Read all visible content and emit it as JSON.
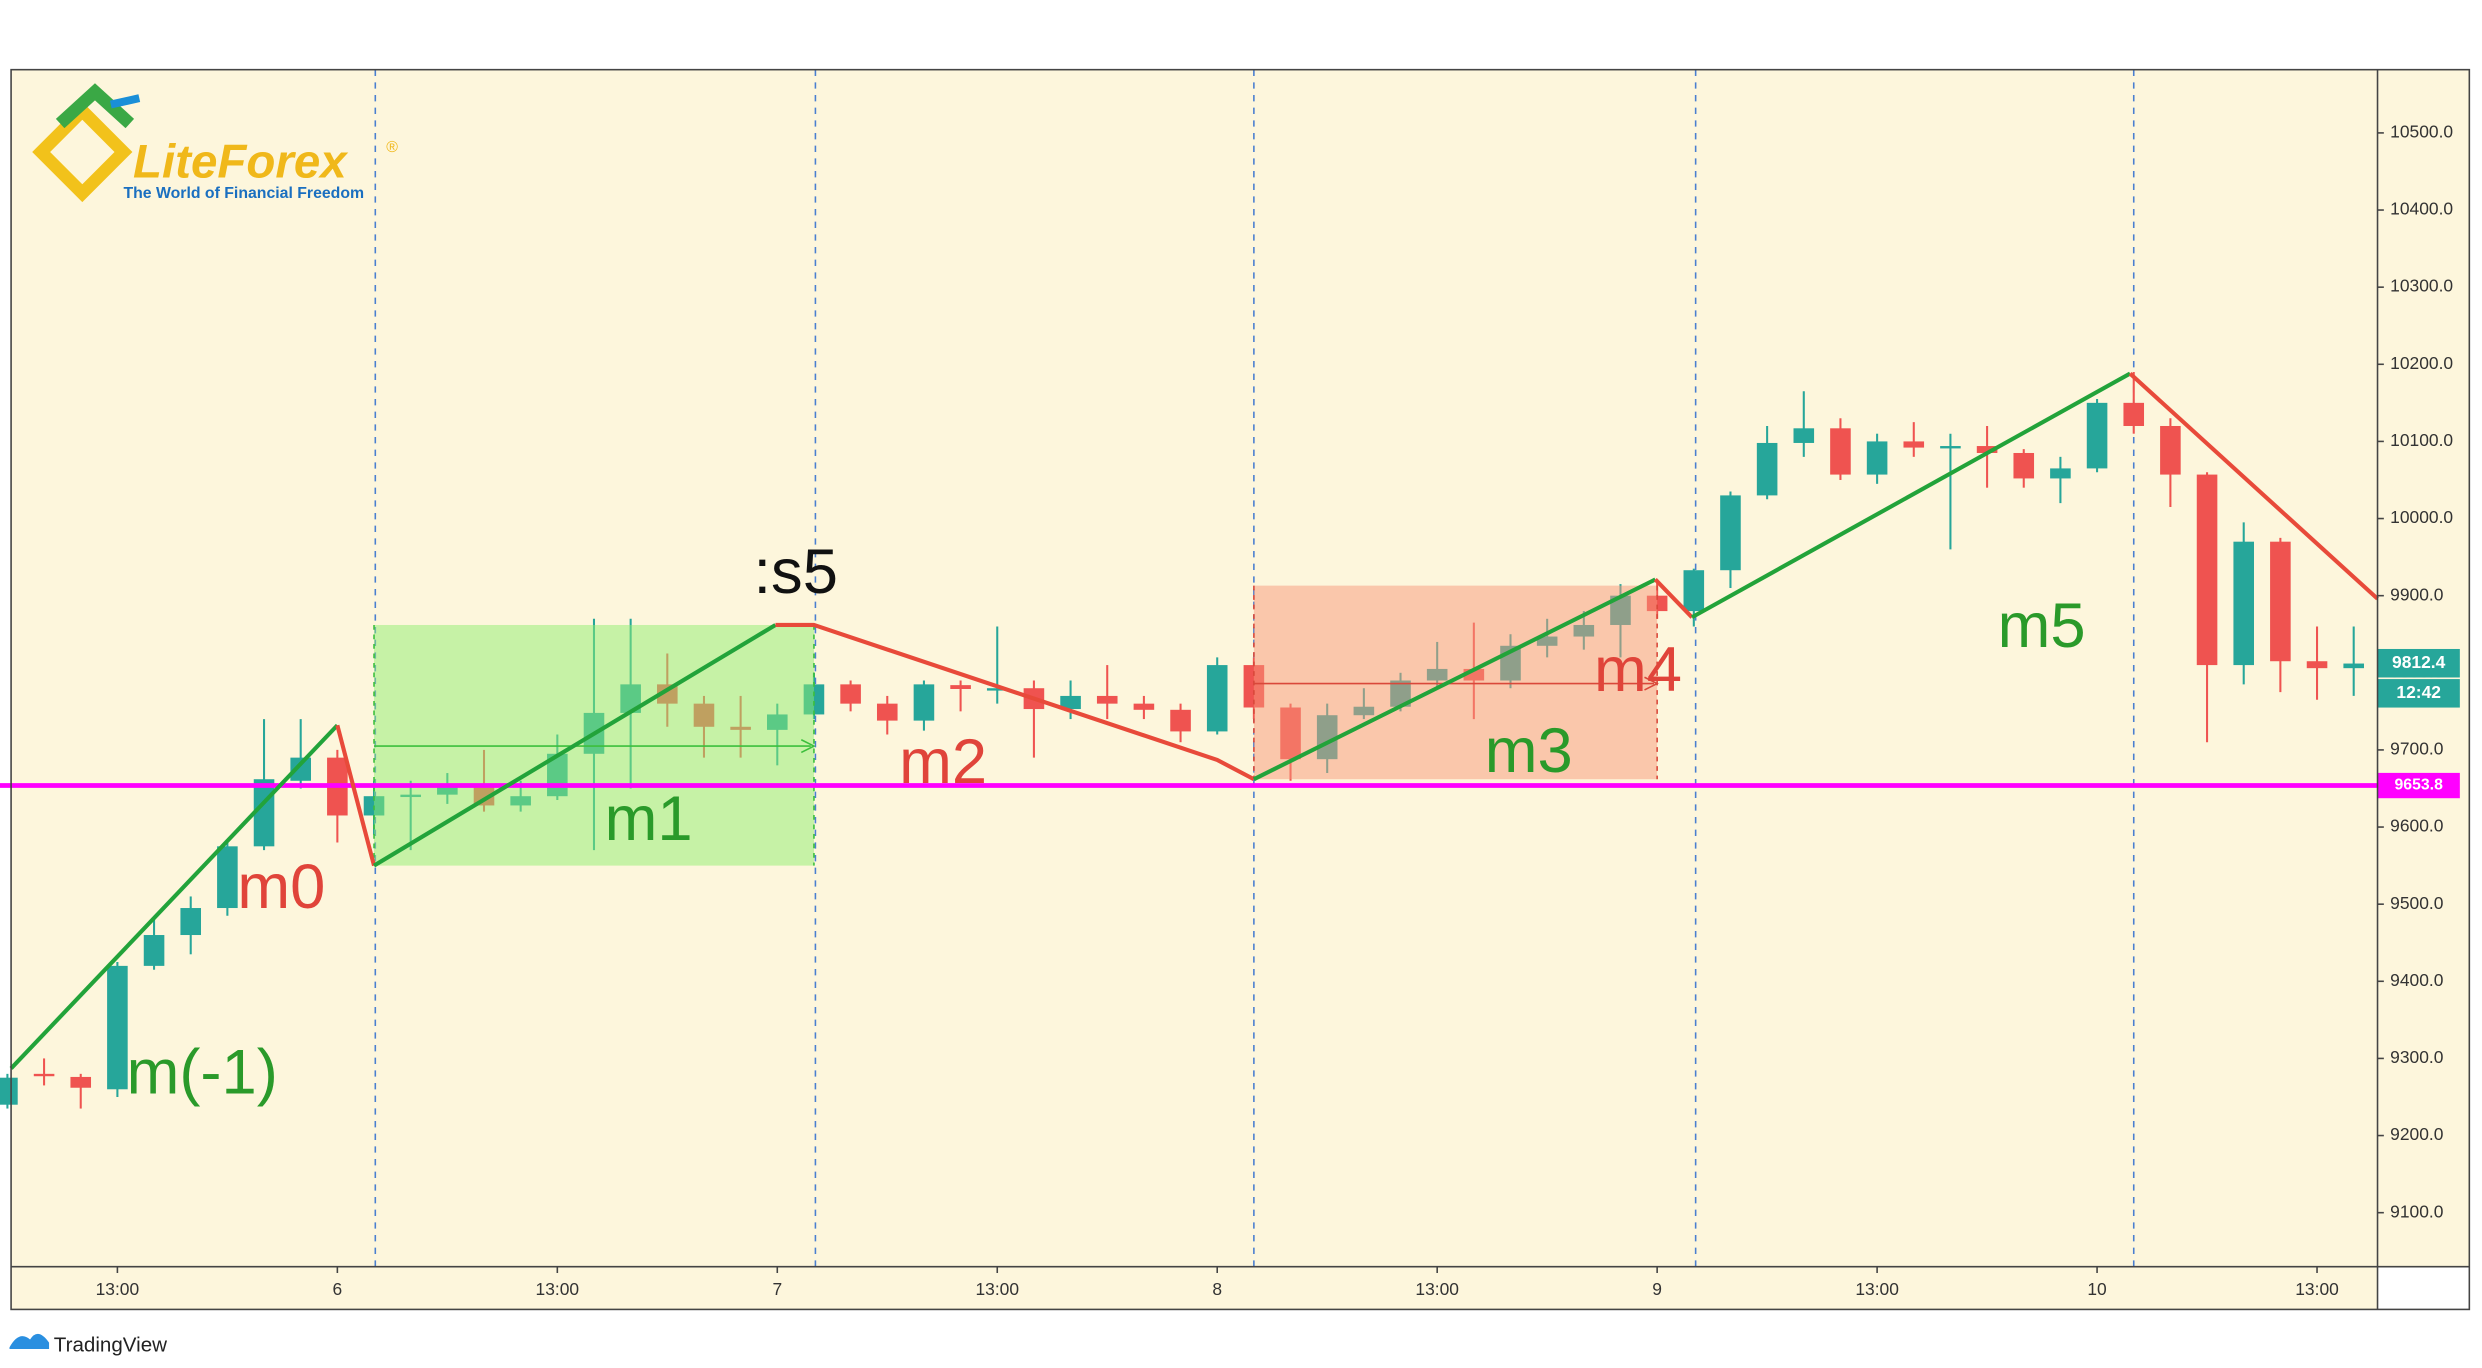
{
  "chart_data": {
    "type": "candlestick",
    "x": [
      -18,
      -16,
      -14,
      -12,
      -10,
      -8,
      -6,
      -4,
      -2,
      0,
      2,
      4,
      6,
      8,
      10,
      12,
      14,
      16,
      18,
      20,
      22,
      24,
      26,
      28,
      30,
      32,
      34,
      36,
      38,
      40,
      42,
      44,
      46,
      48,
      50,
      52,
      54,
      56,
      58,
      60,
      62,
      64,
      66,
      68,
      70,
      72,
      74,
      76,
      78,
      80,
      82,
      84,
      86,
      88,
      90,
      92,
      94,
      96,
      98,
      100,
      102,
      104,
      106,
      108,
      110
    ],
    "open": [
      9240,
      9280,
      9276,
      9260,
      9420,
      9460,
      9495,
      9575,
      9660,
      9690,
      9615,
      9640,
      9642,
      9652,
      9628,
      9640,
      9695,
      9748,
      9785,
      9760,
      9730,
      9726,
      9746,
      9785,
      9760,
      9738,
      9784,
      9779,
      9780,
      9753,
      9770,
      9760,
      9752,
      9724,
      9810,
      9755,
      9688,
      9745,
      9756,
      9790,
      9805,
      9790,
      9835,
      9847,
      9862,
      9900,
      9880,
      9933,
      10030,
      10098,
      10117,
      10057,
      10100,
      10092,
      10094,
      10085,
      10052,
      10065,
      10150,
      10120,
      10057,
      9810,
      9970,
      9815,
      9806
    ],
    "high": [
      9280,
      9300,
      9280,
      9425,
      9480,
      9510,
      9580,
      9740,
      9740,
      9700,
      9660,
      9660,
      9670,
      9700,
      9660,
      9720,
      9870,
      9870,
      9825,
      9770,
      9770,
      9760,
      9800,
      9790,
      9770,
      9790,
      9790,
      9860,
      9790,
      9790,
      9810,
      9770,
      9760,
      9820,
      9820,
      9760,
      9760,
      9780,
      9800,
      9840,
      9865,
      9850,
      9870,
      9880,
      9915,
      9920,
      9935,
      10035,
      10120,
      10165,
      10130,
      10110,
      10125,
      10110,
      10120,
      10090,
      10080,
      10155,
      10190,
      10130,
      10060,
      9995,
      9975,
      9860,
      9860
    ],
    "low": [
      9235,
      9265,
      9235,
      9250,
      9415,
      9435,
      9485,
      9570,
      9650,
      9580,
      9590,
      9570,
      9630,
      9620,
      9620,
      9635,
      9570,
      9650,
      9730,
      9690,
      9690,
      9680,
      9740,
      9750,
      9720,
      9725,
      9750,
      9760,
      9690,
      9740,
      9740,
      9740,
      9710,
      9720,
      9740,
      9660,
      9670,
      9740,
      9750,
      9780,
      9740,
      9780,
      9820,
      9830,
      9820,
      9870,
      9860,
      9910,
      10025,
      10080,
      10050,
      10045,
      10080,
      9960,
      10040,
      10040,
      10020,
      10060,
      10110,
      10015,
      9710,
      9785,
      9775,
      9765,
      9770
    ],
    "close": [
      9275,
      9278,
      9262,
      9420,
      9460,
      9495,
      9575,
      9662,
      9690,
      9615,
      9640,
      9642,
      9652,
      9628,
      9640,
      9695,
      9748,
      9785,
      9760,
      9730,
      9726,
      9746,
      9785,
      9760,
      9738,
      9785,
      9779,
      9780,
      9753,
      9770,
      9760,
      9752,
      9724,
      9810,
      9755,
      9688,
      9745,
      9756,
      9790,
      9805,
      9790,
      9835,
      9847,
      9862,
      9900,
      9880,
      9933,
      10030,
      10098,
      10117,
      10057,
      10100,
      10092,
      10094,
      10085,
      10052,
      10065,
      10150,
      10120,
      10057,
      9810,
      9970,
      9815,
      9806,
      9812
    ],
    "up_color": "#26a69a",
    "down_color": "#ef5350",
    "xlim": [
      -17.8,
      111.3
    ],
    "xticks": [
      {
        "value": -12,
        "label": "13:00"
      },
      {
        "value": 0,
        "label": "6"
      },
      {
        "value": 12,
        "label": "13:00"
      },
      {
        "value": 24,
        "label": "7"
      },
      {
        "value": 36,
        "label": "13:00"
      },
      {
        "value": 48,
        "label": "8"
      },
      {
        "value": 60,
        "label": "13:00"
      },
      {
        "value": 72,
        "label": "9"
      },
      {
        "value": 84,
        "label": "13:00"
      },
      {
        "value": 96,
        "label": "10"
      },
      {
        "value": 108,
        "label": "13:00"
      }
    ],
    "ylim": [
      9030,
      10582
    ],
    "yticks": [
      {
        "value": 9100,
        "label": "9100.0"
      },
      {
        "value": 9200,
        "label": "9200.0"
      },
      {
        "value": 9300,
        "label": "9300.0"
      },
      {
        "value": 9400,
        "label": "9400.0"
      },
      {
        "value": 9500,
        "label": "9500.0"
      },
      {
        "value": 9600,
        "label": "9600.0"
      },
      {
        "value": 9700,
        "label": "9700.0"
      },
      {
        "value": 9800,
        "label": "9800.0"
      },
      {
        "value": 9900,
        "label": "9900.0"
      },
      {
        "value": 10000,
        "label": "10000.0"
      },
      {
        "value": 10100,
        "label": "10100.0"
      },
      {
        "value": 10200,
        "label": "10200.0"
      },
      {
        "value": 10300,
        "label": "10300.0"
      },
      {
        "value": 10400,
        "label": "10400.0"
      },
      {
        "value": 10500,
        "label": "10500.0"
      }
    ],
    "vlines": [
      2.07,
      26.08,
      50,
      74.1,
      98
    ],
    "hline": {
      "value": 9653.8,
      "color": "#ff00ff"
    },
    "last_price": 9812.4,
    "countdown": "12:42",
    "boxes": [
      {
        "color": "#90ee70",
        "x": [
          2,
          26
        ],
        "y": [
          9550,
          9862
        ],
        "arrow": 9705
      },
      {
        "color": "#f8987a",
        "x": [
          50,
          72
        ],
        "y": [
          9662,
          9913
        ],
        "arrow": 9786
      }
    ],
    "zigzag": [
      {
        "color": "#22a33a",
        "x": [
          -17.8,
          0
        ],
        "y": [
          9287,
          9732
        ]
      },
      {
        "color": "#e84a3a",
        "x": [
          0,
          2
        ],
        "y": [
          9732,
          9550
        ]
      },
      {
        "color": "#22a33a",
        "x": [
          2,
          23.9
        ],
        "y": [
          9550,
          9862
        ]
      },
      {
        "color": "#e84a3a",
        "x": [
          23.9,
          26,
          48,
          50
        ],
        "y": [
          9862,
          9862,
          9687,
          9662
        ]
      },
      {
        "color": "#22a33a",
        "x": [
          50,
          71.9
        ],
        "y": [
          9662,
          9921
        ]
      },
      {
        "color": "#e84a3a",
        "x": [
          71.9,
          73.9
        ],
        "y": [
          9921,
          9872
        ]
      },
      {
        "color": "#22a33a",
        "x": [
          73.9,
          97.8
        ],
        "y": [
          9872,
          10188
        ]
      },
      {
        "color": "#e84a3a",
        "x": [
          97.8,
          111.3
        ],
        "y": [
          10188,
          9896
        ]
      }
    ],
    "labels": [
      {
        "text": "m(-1)",
        "color": "#2a9a2a"
      },
      {
        "text": "m0",
        "color": "#e0443a"
      },
      {
        "text": "m1",
        "color": "#2a9a2a"
      },
      {
        "text": ":s5",
        "color": "#111111"
      },
      {
        "text": "m2",
        "color": "#e0443a"
      },
      {
        "text": "m3",
        "color": "#2a9a2a"
      },
      {
        "text": "m4",
        "color": "#e0443a"
      },
      {
        "text": "m5",
        "color": "#2a9a2a"
      }
    ]
  },
  "logo": {
    "name": "LiteForex",
    "mark": "®",
    "tagline": "The World of Financial Freedom"
  },
  "footer": "TradingView"
}
